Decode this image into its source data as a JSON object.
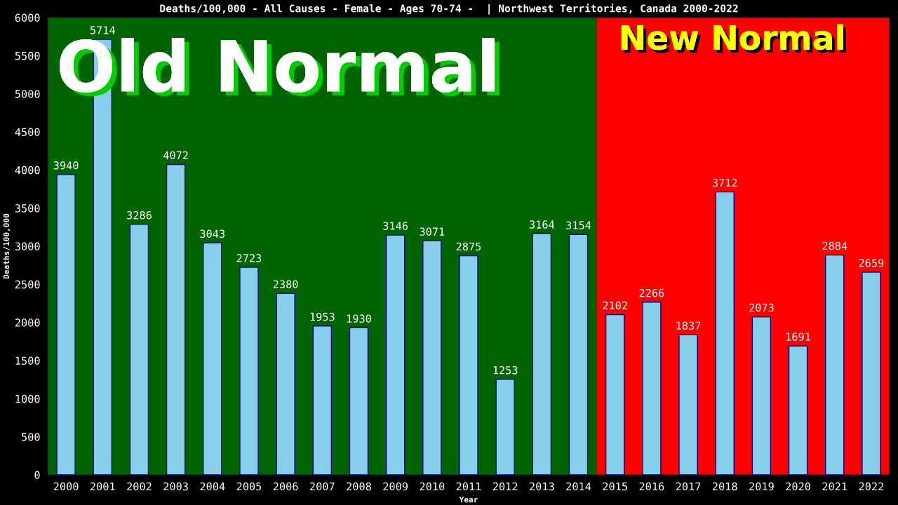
{
  "chart_data": {
    "type": "bar",
    "title": "Deaths/100,000 - All Causes - Female - Ages 70-74 -  | Northwest Territories, Canada 2000-2022",
    "xlabel": "Year",
    "ylabel": "Deaths/100,000",
    "categories": [
      "2000",
      "2001",
      "2002",
      "2003",
      "2004",
      "2005",
      "2006",
      "2007",
      "2008",
      "2009",
      "2010",
      "2011",
      "2012",
      "2013",
      "2014",
      "2015",
      "2016",
      "2017",
      "2018",
      "2019",
      "2020",
      "2021",
      "2022"
    ],
    "values": [
      3940,
      5714,
      3286,
      4072,
      3043,
      2723,
      2380,
      1953,
      1930,
      3146,
      3071,
      2875,
      1253,
      3164,
      3154,
      2102,
      2266,
      1837,
      3712,
      2073,
      1691,
      2884,
      2659
    ],
    "color": "#87ceeb",
    "data_labels": true,
    "ylim": [
      0,
      6000
    ],
    "yticks": [
      0,
      500,
      1000,
      1500,
      2000,
      2500,
      3000,
      3500,
      4000,
      4500,
      5000,
      5500,
      6000
    ],
    "bands": [
      {
        "axis": "x",
        "from": "2000",
        "to": "2014",
        "label": "Old Normal",
        "color": "#006400"
      },
      {
        "axis": "x",
        "from": "2015",
        "to": "2022",
        "label": "New Normal",
        "color": "#ff0000"
      }
    ],
    "grid": false,
    "legend": false
  }
}
